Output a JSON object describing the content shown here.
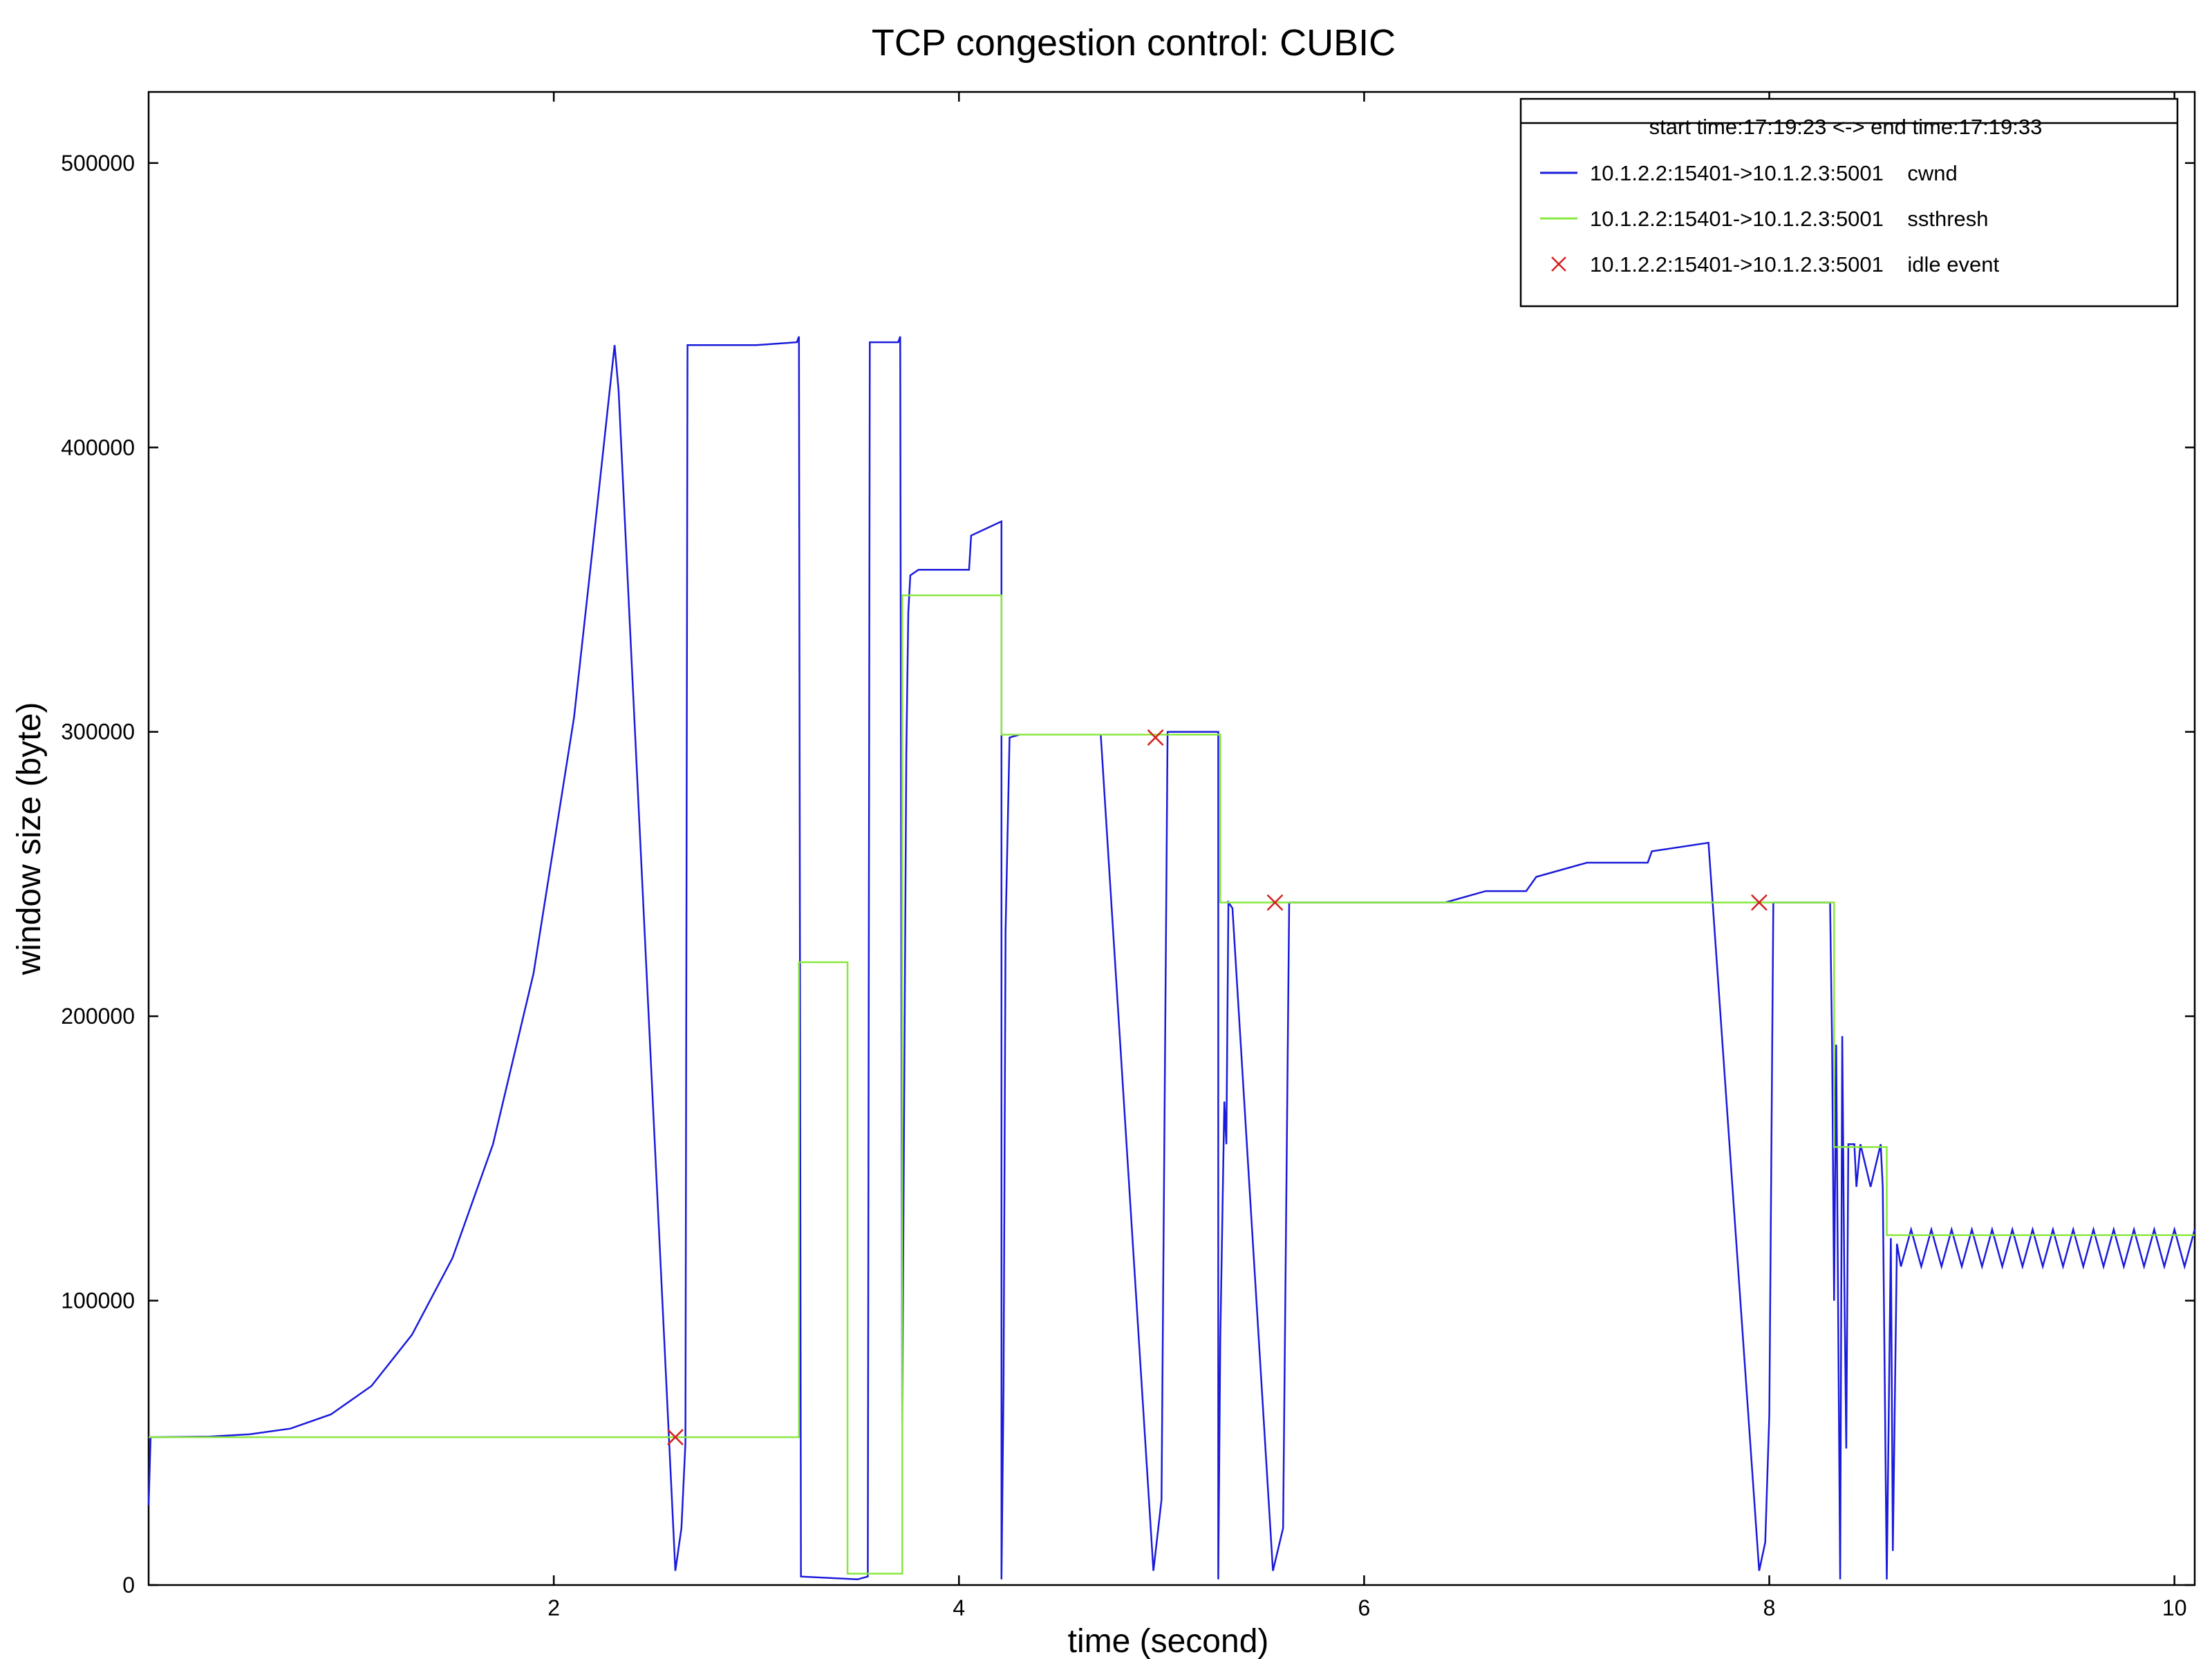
{
  "chart_data": {
    "type": "line",
    "title": "TCP congestion control: CUBIC",
    "xlabel": "time (second)",
    "ylabel": "window size (byte)",
    "xlim": [
      0,
      10.1
    ],
    "ylim": [
      0,
      525000
    ],
    "x_ticks": [
      2,
      4,
      6,
      8,
      10
    ],
    "y_ticks": [
      0,
      100000,
      200000,
      300000,
      400000,
      500000
    ],
    "grid": false,
    "legend_position": "top-right",
    "legend_header": "start time:17:19:23 <-> end time:17:19:33",
    "colors": {
      "cwnd": "#1a1adb",
      "ssthresh": "#88e83e",
      "idle": "#d42020"
    },
    "series": [
      {
        "name": "10.1.2.2:15401->10.1.2.3:5001    cwnd",
        "kind": "line",
        "color": "#1a1adb",
        "points": [
          [
            0.0,
            28000
          ],
          [
            0.01,
            52000
          ],
          [
            0.3,
            52200
          ],
          [
            0.5,
            53000
          ],
          [
            0.7,
            55000
          ],
          [
            0.9,
            60000
          ],
          [
            1.1,
            70000
          ],
          [
            1.3,
            88000
          ],
          [
            1.5,
            115000
          ],
          [
            1.7,
            155000
          ],
          [
            1.9,
            215000
          ],
          [
            2.1,
            305000
          ],
          [
            2.2,
            370000
          ],
          [
            2.3,
            436000
          ],
          [
            2.32,
            420000
          ],
          [
            2.6,
            5000
          ],
          [
            2.63,
            20000
          ],
          [
            2.65,
            50000
          ],
          [
            2.66,
            436000
          ],
          [
            3.0,
            436000
          ],
          [
            3.2,
            437000
          ],
          [
            3.21,
            439000
          ],
          [
            3.22,
            3000
          ],
          [
            3.5,
            2000
          ],
          [
            3.55,
            3000
          ],
          [
            3.56,
            437000
          ],
          [
            3.7,
            437000
          ],
          [
            3.71,
            439000
          ],
          [
            3.72,
            57000
          ],
          [
            3.74,
            292000
          ],
          [
            3.75,
            342000
          ],
          [
            3.76,
            355000
          ],
          [
            3.8,
            357000
          ],
          [
            4.05,
            357000
          ],
          [
            4.06,
            369000
          ],
          [
            4.21,
            374000
          ],
          [
            4.21,
            2000
          ],
          [
            4.22,
            70000
          ],
          [
            4.23,
            230000
          ],
          [
            4.25,
            298000
          ],
          [
            4.3,
            299000
          ],
          [
            4.7,
            299000
          ],
          [
            4.96,
            5000
          ],
          [
            5.0,
            30000
          ],
          [
            5.03,
            300000
          ],
          [
            5.28,
            300000
          ],
          [
            5.28,
            2000
          ],
          [
            5.29,
            86000
          ],
          [
            5.31,
            170000
          ],
          [
            5.32,
            155000
          ],
          [
            5.33,
            240000
          ],
          [
            5.35,
            238000
          ],
          [
            5.55,
            5000
          ],
          [
            5.6,
            20000
          ],
          [
            5.63,
            240000
          ],
          [
            6.4,
            240000
          ],
          [
            6.6,
            244000
          ],
          [
            6.8,
            244000
          ],
          [
            6.85,
            249000
          ],
          [
            7.1,
            254000
          ],
          [
            7.4,
            254000
          ],
          [
            7.42,
            258000
          ],
          [
            7.7,
            261000
          ],
          [
            7.95,
            5000
          ],
          [
            7.98,
            15000
          ],
          [
            8.0,
            60000
          ],
          [
            8.02,
            240000
          ],
          [
            8.3,
            240000
          ],
          [
            8.31,
            190000
          ],
          [
            8.32,
            100000
          ],
          [
            8.33,
            190000
          ],
          [
            8.34,
            95000
          ],
          [
            8.35,
            2000
          ],
          [
            8.36,
            193000
          ],
          [
            8.37,
            110000
          ],
          [
            8.38,
            48000
          ],
          [
            8.39,
            155000
          ],
          [
            8.42,
            155000
          ],
          [
            8.43,
            140000
          ],
          [
            8.45,
            155000
          ],
          [
            8.5,
            140000
          ],
          [
            8.55,
            155000
          ],
          [
            8.56,
            140000
          ],
          [
            8.58,
            2000
          ],
          [
            8.6,
            122000
          ],
          [
            8.61,
            12000
          ],
          [
            8.63,
            120000
          ],
          [
            8.65,
            112000
          ],
          [
            8.7,
            125000
          ],
          [
            8.75,
            112000
          ],
          [
            8.8,
            125000
          ],
          [
            8.85,
            112000
          ],
          [
            8.9,
            125000
          ],
          [
            8.95,
            112000
          ],
          [
            9.0,
            125000
          ],
          [
            9.05,
            112000
          ],
          [
            9.1,
            125000
          ],
          [
            9.15,
            112000
          ],
          [
            9.2,
            125000
          ],
          [
            9.25,
            112000
          ],
          [
            9.3,
            125000
          ],
          [
            9.35,
            112000
          ],
          [
            9.4,
            125000
          ],
          [
            9.45,
            112000
          ],
          [
            9.5,
            125000
          ],
          [
            9.55,
            112000
          ],
          [
            9.6,
            125000
          ],
          [
            9.65,
            112000
          ],
          [
            9.7,
            125000
          ],
          [
            9.75,
            112000
          ],
          [
            9.8,
            125000
          ],
          [
            9.85,
            112000
          ],
          [
            9.9,
            125000
          ],
          [
            9.95,
            112000
          ],
          [
            10.0,
            125000
          ],
          [
            10.05,
            112000
          ],
          [
            10.1,
            125000
          ]
        ]
      },
      {
        "name": "10.1.2.2:15401->10.1.2.3:5001    ssthresh",
        "kind": "step",
        "color": "#88e83e",
        "points": [
          [
            0.0,
            52000
          ],
          [
            3.2,
            52000
          ],
          [
            3.21,
            219000
          ],
          [
            3.45,
            4000
          ],
          [
            3.71,
            4000
          ],
          [
            3.72,
            348000
          ],
          [
            4.2,
            348000
          ],
          [
            4.21,
            299000
          ],
          [
            5.28,
            299000
          ],
          [
            5.29,
            240000
          ],
          [
            8.3,
            240000
          ],
          [
            8.32,
            154000
          ],
          [
            8.56,
            154000
          ],
          [
            8.58,
            123000
          ],
          [
            10.1,
            123000
          ]
        ]
      },
      {
        "name": "10.1.2.2:15401->10.1.2.3:5001    idle event",
        "kind": "marker",
        "color": "#d42020",
        "points": [
          [
            2.6,
            52000
          ],
          [
            4.97,
            298000
          ],
          [
            5.56,
            240000
          ],
          [
            7.95,
            240000
          ]
        ]
      }
    ]
  }
}
